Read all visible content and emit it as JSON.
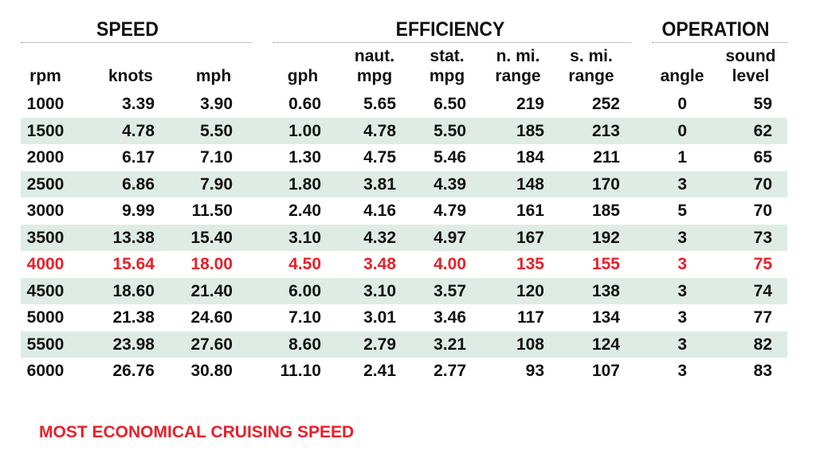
{
  "chart_data": {
    "type": "table",
    "groups": [
      {
        "label": "SPEED"
      },
      {
        "label": "EFFICIENCY"
      },
      {
        "label": "OPERATION"
      }
    ],
    "columns": [
      {
        "key": "rpm",
        "l1": "",
        "l2": "rpm"
      },
      {
        "key": "knots",
        "l1": "",
        "l2": "knots"
      },
      {
        "key": "mph",
        "l1": "",
        "l2": "mph"
      },
      {
        "key": "gph",
        "l1": "",
        "l2": "gph"
      },
      {
        "key": "naut_mpg",
        "l1": "naut.",
        "l2": "mpg"
      },
      {
        "key": "stat_mpg",
        "l1": "stat.",
        "l2": "mpg"
      },
      {
        "key": "n_mi_range",
        "l1": "n. mi.",
        "l2": "range"
      },
      {
        "key": "s_mi_range",
        "l1": "s. mi.",
        "l2": "range"
      },
      {
        "key": "angle",
        "l1": "",
        "l2": "angle"
      },
      {
        "key": "sound_level",
        "l1": "sound",
        "l2": "level"
      }
    ],
    "rows": [
      [
        "1000",
        "3.39",
        "3.90",
        "0.60",
        "5.65",
        "6.50",
        "219",
        "252",
        "0",
        "59"
      ],
      [
        "1500",
        "4.78",
        "5.50",
        "1.00",
        "4.78",
        "5.50",
        "185",
        "213",
        "0",
        "62"
      ],
      [
        "2000",
        "6.17",
        "7.10",
        "1.30",
        "4.75",
        "5.46",
        "184",
        "211",
        "1",
        "65"
      ],
      [
        "2500",
        "6.86",
        "7.90",
        "1.80",
        "3.81",
        "4.39",
        "148",
        "170",
        "3",
        "70"
      ],
      [
        "3000",
        "9.99",
        "11.50",
        "2.40",
        "4.16",
        "4.79",
        "161",
        "185",
        "5",
        "70"
      ],
      [
        "3500",
        "13.38",
        "15.40",
        "3.10",
        "4.32",
        "4.97",
        "167",
        "192",
        "3",
        "73"
      ],
      [
        "4000",
        "15.64",
        "18.00",
        "4.50",
        "3.48",
        "4.00",
        "135",
        "155",
        "3",
        "75"
      ],
      [
        "4500",
        "18.60",
        "21.40",
        "6.00",
        "3.10",
        "3.57",
        "120",
        "138",
        "3",
        "74"
      ],
      [
        "5000",
        "21.38",
        "24.60",
        "7.10",
        "3.01",
        "3.46",
        "117",
        "134",
        "3",
        "77"
      ],
      [
        "5500",
        "23.98",
        "27.60",
        "8.60",
        "2.79",
        "3.21",
        "108",
        "124",
        "3",
        "82"
      ],
      [
        "6000",
        "26.76",
        "30.80",
        "11.10",
        "2.41",
        "2.77",
        "93",
        "107",
        "3",
        "83"
      ]
    ],
    "highlight_row": 6,
    "shaded_rows": [
      1,
      3,
      5,
      7,
      9
    ],
    "colors": {
      "highlight": "#e8202a",
      "shade": "#dfece6",
      "text": "#111111"
    }
  },
  "footnote": "MOST ECONOMICAL CRUISING SPEED"
}
